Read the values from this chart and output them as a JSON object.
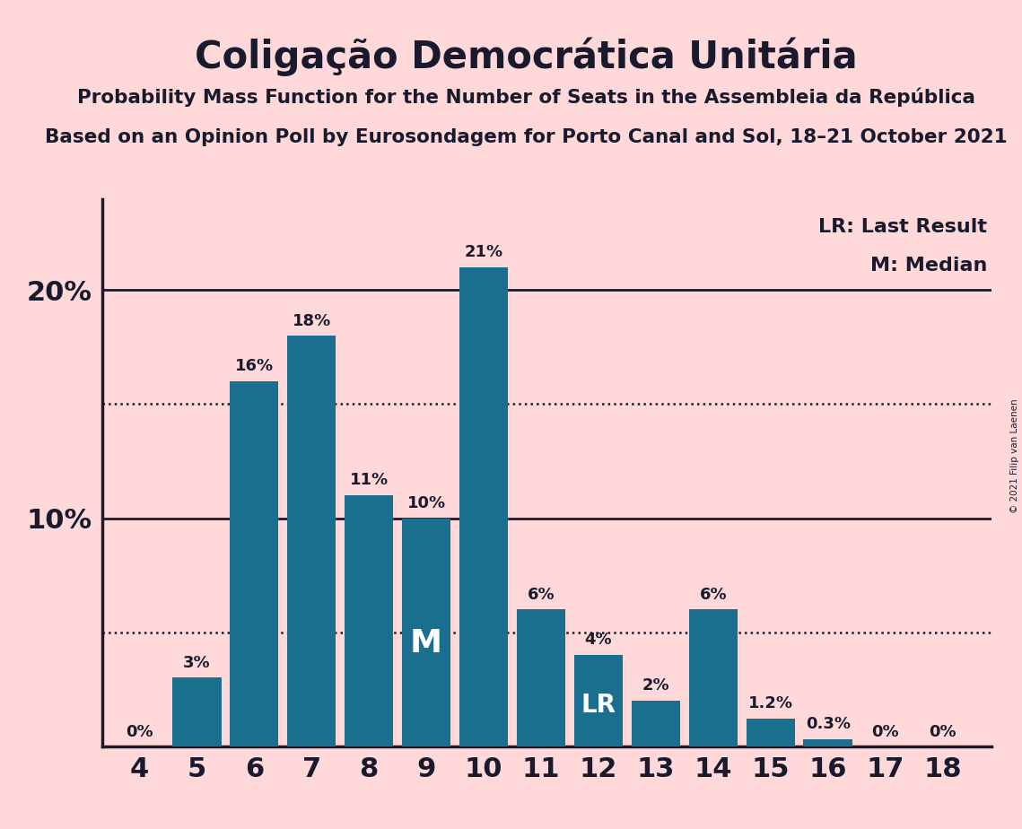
{
  "title": "Coligação Democrática Unitária",
  "subtitle1": "Probability Mass Function for the Number of Seats in the Assembleia da República",
  "subtitle2": "Based on an Opinion Poll by Eurosondagem for Porto Canal and Sol, 18–21 October 2021",
  "copyright": "© 2021 Filip van Laenen",
  "categories": [
    4,
    5,
    6,
    7,
    8,
    9,
    10,
    11,
    12,
    13,
    14,
    15,
    16,
    17,
    18
  ],
  "values": [
    0,
    3,
    16,
    18,
    11,
    10,
    21,
    6,
    4,
    2,
    6,
    1.2,
    0.3,
    0,
    0
  ],
  "bar_color": "#1a6e8e",
  "background_color": "#ffd9d9",
  "text_color": "#1a1a2e",
  "yticks": [
    10,
    20
  ],
  "ytick_labels": [
    "10%",
    "20%"
  ],
  "ylim": [
    0,
    24
  ],
  "dotted_lines": [
    5,
    15
  ],
  "solid_lines": [
    10,
    20
  ],
  "median_bar": 9,
  "lr_bar": 12,
  "legend_lr": "LR: Last Result",
  "legend_m": "M: Median",
  "bar_labels": {
    "4": "0%",
    "5": "3%",
    "6": "16%",
    "7": "18%",
    "8": "11%",
    "9": "10%",
    "10": "21%",
    "11": "6%",
    "12": "4%",
    "13": "2%",
    "14": "6%",
    "15": "1.2%",
    "16": "0.3%",
    "17": "0%",
    "18": "0%"
  }
}
